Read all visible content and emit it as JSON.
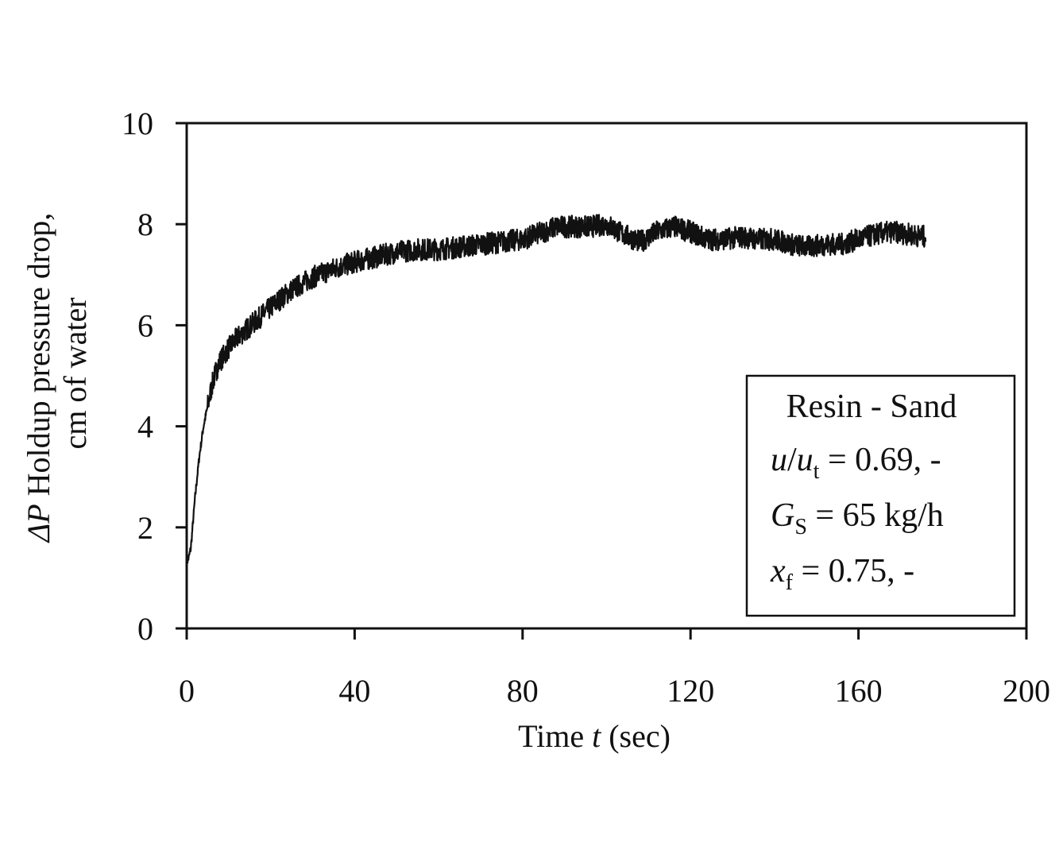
{
  "chart_data": {
    "type": "line",
    "title": "",
    "xlabel": {
      "prefix": "Time ",
      "var": "t",
      "suffix": " (sec)"
    },
    "ylabel": {
      "line1_symbol": "ΔP",
      "line1_rest": " Holdup pressure drop,",
      "line2": "cm of water"
    },
    "xlim": [
      0,
      200
    ],
    "ylim": [
      0,
      10
    ],
    "xticks": [
      "0",
      "40",
      "80",
      "120",
      "160",
      "200"
    ],
    "yticks": [
      "0",
      "2",
      "4",
      "6",
      "8",
      "10"
    ],
    "grid": false,
    "legend": {
      "placement": "bottom-right",
      "line1": "Resin - Sand",
      "line2": {
        "var": "u",
        "sep": "/",
        "var2": "u",
        "sub": "t",
        "rest": " = 0.69, -"
      },
      "line3": {
        "var": "G",
        "sub": "S",
        "rest": " = 65  kg/h"
      },
      "line4": {
        "var": "x",
        "sub": "f",
        "rest": " = 0.75, -"
      }
    },
    "series": [
      {
        "color": "#111111",
        "x": [
          0,
          0.5,
          1,
          2,
          3,
          4,
          5,
          6,
          7,
          8,
          10,
          12,
          14,
          16,
          18,
          20,
          22,
          25,
          28,
          30,
          33,
          36,
          40,
          45,
          50,
          55,
          60,
          65,
          70,
          75,
          80,
          85,
          88,
          92,
          96,
          100,
          104,
          108,
          112,
          116,
          120,
          124,
          128,
          132,
          136,
          140,
          144,
          148,
          152,
          156,
          160,
          164,
          168,
          172,
          176
        ],
        "y": [
          1.3,
          1.4,
          1.6,
          2.6,
          3.4,
          4.0,
          4.4,
          4.8,
          5.1,
          5.3,
          5.55,
          5.75,
          5.9,
          6.05,
          6.2,
          6.35,
          6.5,
          6.7,
          6.85,
          6.95,
          7.05,
          7.15,
          7.25,
          7.35,
          7.45,
          7.5,
          7.5,
          7.55,
          7.6,
          7.65,
          7.7,
          7.85,
          7.95,
          7.95,
          7.95,
          8.0,
          7.8,
          7.65,
          7.85,
          7.95,
          7.85,
          7.7,
          7.7,
          7.75,
          7.7,
          7.7,
          7.6,
          7.55,
          7.6,
          7.6,
          7.7,
          7.8,
          7.85,
          7.8,
          7.75
        ]
      }
    ]
  }
}
